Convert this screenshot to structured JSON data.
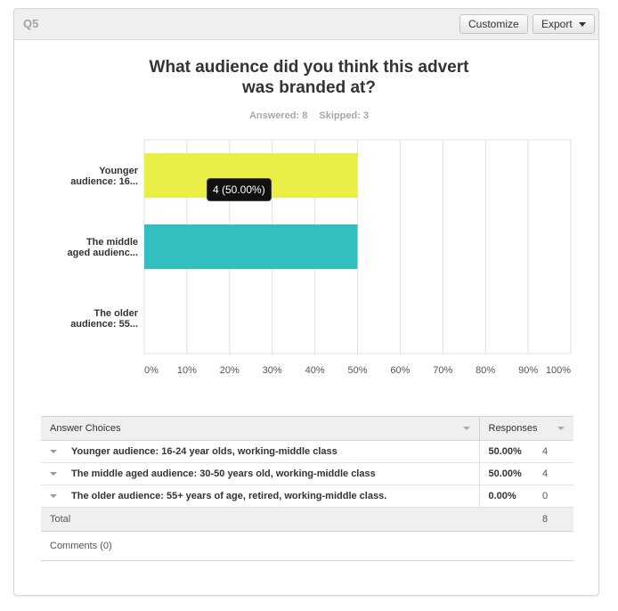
{
  "header": {
    "question_label": "Q5",
    "customize_label": "Customize",
    "export_label": "Export"
  },
  "title_line1": "What audience did you think this advert",
  "title_line2": "was branded at?",
  "stats": {
    "answered": "Answered: 8",
    "skipped": "Skipped: 3"
  },
  "tooltip": "4 (50.00%)",
  "colors": {
    "bar1": "#e9ef47",
    "bar2": "#33bfbf",
    "grid": "#e0e0e0"
  },
  "chart_data": {
    "type": "bar",
    "orientation": "horizontal",
    "categories": [
      [
        "Younger",
        "audience: 16..."
      ],
      [
        "The middle",
        "aged audienc..."
      ],
      [
        "The older",
        "audience: 55..."
      ]
    ],
    "values": [
      50,
      50,
      0
    ],
    "xlim": [
      0,
      100
    ],
    "ticks": [
      "0%",
      "10%",
      "20%",
      "30%",
      "40%",
      "50%",
      "60%",
      "70%",
      "80%",
      "90%",
      "100%"
    ],
    "grid": true
  },
  "table": {
    "col_answer": "Answer Choices",
    "col_responses": "Responses",
    "rows": [
      {
        "choice": "Younger audience: 16-24 year olds, working-middle class",
        "percent": "50.00%",
        "count": "4"
      },
      {
        "choice": "The middle aged audience: 30-50 years old, working-middle class",
        "percent": "50.00%",
        "count": "4"
      },
      {
        "choice": "The older audience: 55+ years of age, retired, working-middle class.",
        "percent": "0.00%",
        "count": "0"
      }
    ],
    "total_label": "Total",
    "total_value": "8",
    "comments": "Comments (0)"
  }
}
